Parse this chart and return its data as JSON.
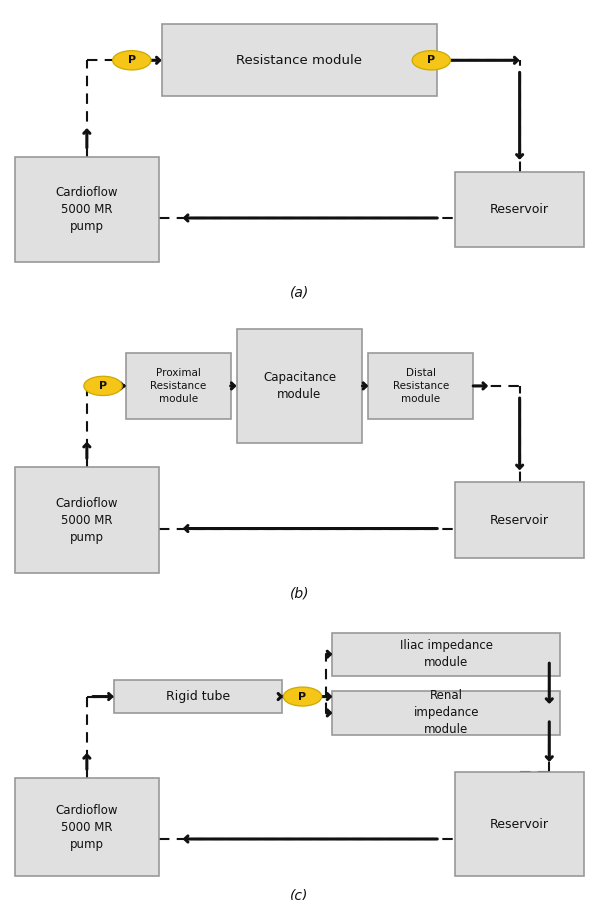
{
  "background": "#ffffff",
  "box_fill": "#e0e0e0",
  "box_edge": "#999999",
  "arrow_color": "#111111",
  "p_circle_fill": "#f5c518",
  "p_circle_edge": "#ccaa00",
  "text_color": "#111111",
  "label_a": "(a)",
  "label_b": "(b)",
  "label_c": "(c)",
  "font_size": 8.5,
  "label_font_size": 10
}
